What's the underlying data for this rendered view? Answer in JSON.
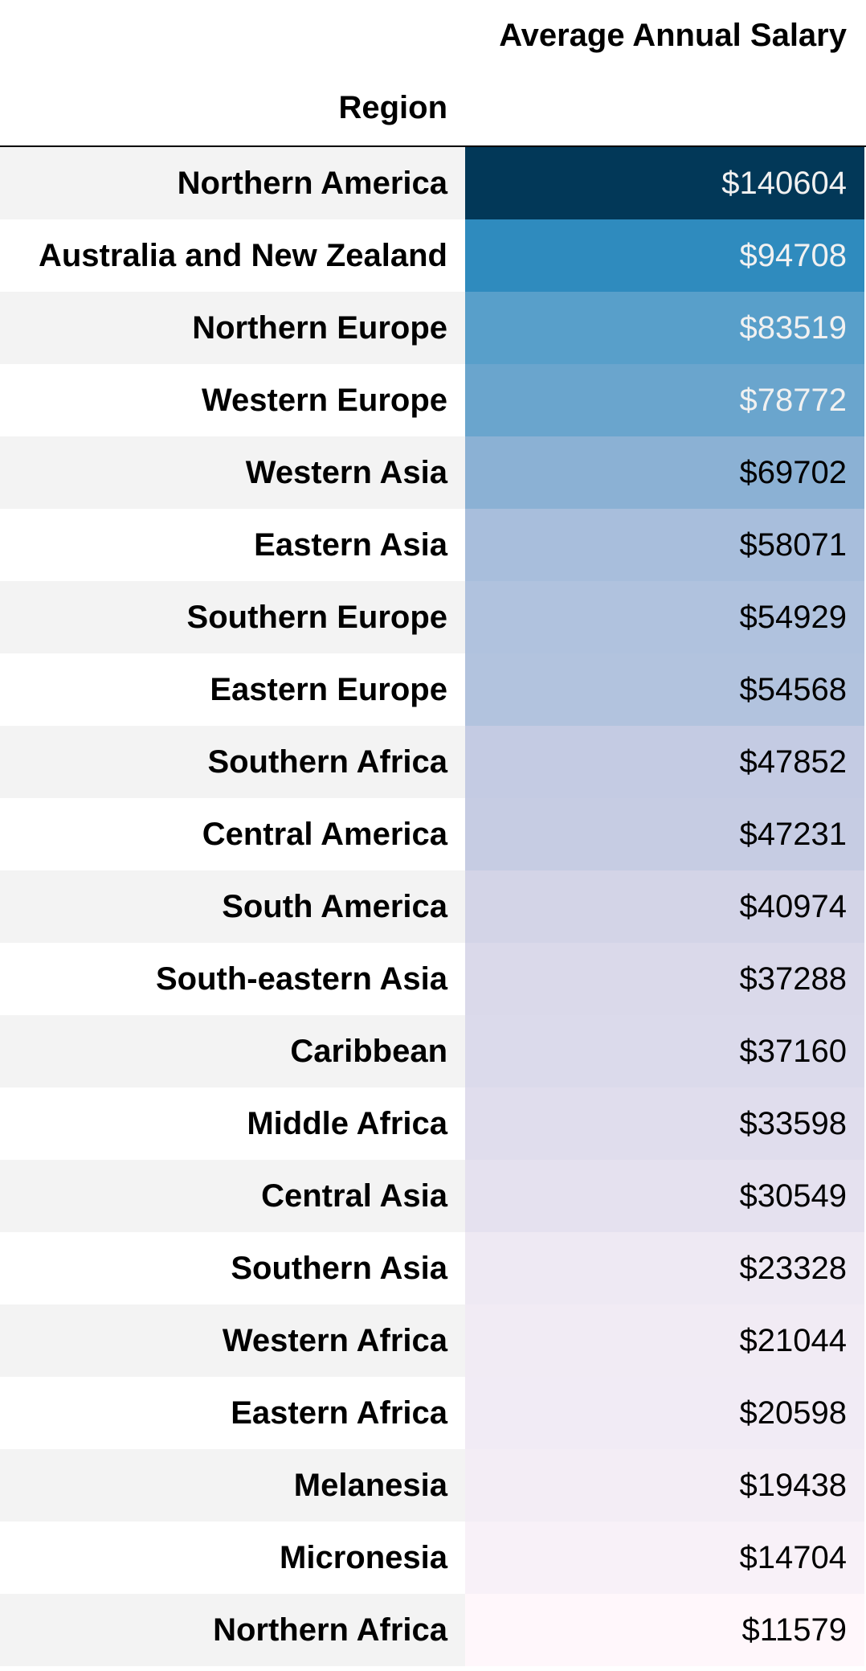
{
  "table": {
    "column_header": "Average Annual Salary",
    "index_header": "Region"
  },
  "chart_data": {
    "type": "table",
    "columns": [
      "Region",
      "Average Annual Salary"
    ],
    "rows": [
      {
        "region": "Northern America",
        "salary": 140604,
        "label": "$140604",
        "bg": "#023858",
        "fg": "#f1f1f1"
      },
      {
        "region": "Australia and New Zealand",
        "salary": 94708,
        "label": "$94708",
        "bg": "#2f8bbe",
        "fg": "#f1f1f1"
      },
      {
        "region": "Northern Europe",
        "salary": 83519,
        "label": "$83519",
        "bg": "#589fca",
        "fg": "#f1f1f1"
      },
      {
        "region": "Western Europe",
        "salary": 78772,
        "label": "$78772",
        "bg": "#6aa5cd",
        "fg": "#f1f1f1"
      },
      {
        "region": "Western Asia",
        "salary": 69702,
        "label": "$69702",
        "bg": "#8bb1d4",
        "fg": "#000000"
      },
      {
        "region": "Eastern Asia",
        "salary": 58071,
        "label": "$58071",
        "bg": "#a8bedc",
        "fg": "#000000"
      },
      {
        "region": "Southern Europe",
        "salary": 54929,
        "label": "$54929",
        "bg": "#b0c2de",
        "fg": "#000000"
      },
      {
        "region": "Eastern Europe",
        "salary": 54568,
        "label": "$54568",
        "bg": "#b2c3de",
        "fg": "#000000"
      },
      {
        "region": "Southern Africa",
        "salary": 47852,
        "label": "$47852",
        "bg": "#c4cbe3",
        "fg": "#000000"
      },
      {
        "region": "Central America",
        "salary": 47231,
        "label": "$47231",
        "bg": "#c6cce3",
        "fg": "#000000"
      },
      {
        "region": "South America",
        "salary": 40974,
        "label": "$40974",
        "bg": "#d3d4e7",
        "fg": "#000000"
      },
      {
        "region": "South-eastern Asia",
        "salary": 37288,
        "label": "$37288",
        "bg": "#dad9ea",
        "fg": "#000000"
      },
      {
        "region": "Caribbean",
        "salary": 37160,
        "label": "$37160",
        "bg": "#dbdaeb",
        "fg": "#000000"
      },
      {
        "region": "Middle Africa",
        "salary": 33598,
        "label": "$33598",
        "bg": "#e0dded",
        "fg": "#000000"
      },
      {
        "region": "Central Asia",
        "salary": 30549,
        "label": "$30549",
        "bg": "#e5e1ef",
        "fg": "#000000"
      },
      {
        "region": "Southern Asia",
        "salary": 23328,
        "label": "$23328",
        "bg": "#eee9f3",
        "fg": "#000000"
      },
      {
        "region": "Western Africa",
        "salary": 21044,
        "label": "$21044",
        "bg": "#f1ebf4",
        "fg": "#000000"
      },
      {
        "region": "Eastern Africa",
        "salary": 20598,
        "label": "$20598",
        "bg": "#f1ebf5",
        "fg": "#000000"
      },
      {
        "region": "Melanesia",
        "salary": 19438,
        "label": "$19438",
        "bg": "#f3edf5",
        "fg": "#000000"
      },
      {
        "region": "Micronesia",
        "salary": 14704,
        "label": "$14704",
        "bg": "#f8f1f8",
        "fg": "#000000"
      },
      {
        "region": "Northern Africa",
        "salary": 11579,
        "label": "$11579",
        "bg": "#fff7fb",
        "fg": "#000000"
      }
    ]
  }
}
